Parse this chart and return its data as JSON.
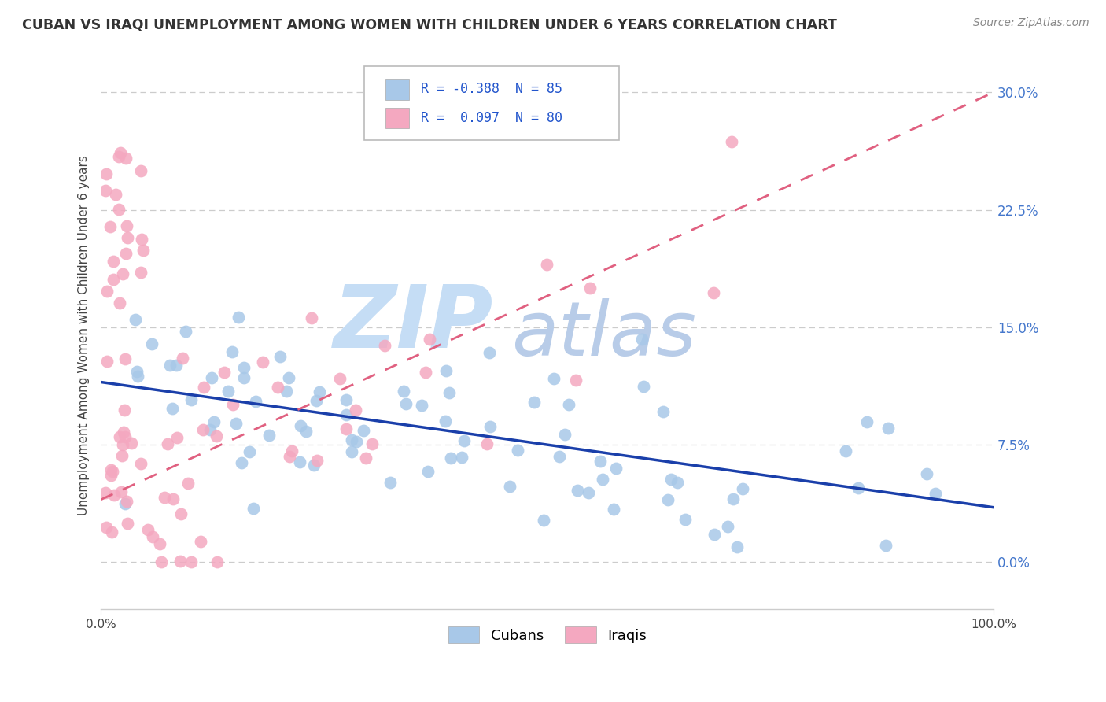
{
  "title": "CUBAN VS IRAQI UNEMPLOYMENT AMONG WOMEN WITH CHILDREN UNDER 6 YEARS CORRELATION CHART",
  "source": "Source: ZipAtlas.com",
  "ylabel": "Unemployment Among Women with Children Under 6 years",
  "xlim": [
    0,
    100
  ],
  "ylim": [
    -3,
    32
  ],
  "yticks": [
    0,
    7.5,
    15.0,
    22.5,
    30.0
  ],
  "ytick_labels": [
    "0.0%",
    "7.5%",
    "15.0%",
    "22.5%",
    "30.0%"
  ],
  "xtick_labels": [
    "0.0%",
    "100.0%"
  ],
  "cubans_R": -0.388,
  "cubans_N": 85,
  "iraqis_R": 0.097,
  "iraqis_N": 80,
  "cubans_color": "#a8c8e8",
  "iraqis_color": "#f4a8c0",
  "cubans_line_color": "#1a3faa",
  "iraqis_line_color": "#e06080",
  "watermark_zip": "ZIP",
  "watermark_atlas": "atlas",
  "watermark_color_zip": "#c5ddf5",
  "watermark_color_atlas": "#b8cce8",
  "legend_r_color": "#2255cc",
  "background_color": "#ffffff",
  "grid_color": "#cccccc",
  "title_color": "#333333",
  "source_color": "#888888",
  "yaxis_tick_color": "#4477cc",
  "cubans_trend_x0": 0,
  "cubans_trend_y0": 11.5,
  "cubans_trend_x1": 100,
  "cubans_trend_y1": 3.5,
  "iraqis_trend_x0": 0,
  "iraqis_trend_y0": 4.0,
  "iraqis_trend_x1": 100,
  "iraqis_trend_y1": 30.0
}
